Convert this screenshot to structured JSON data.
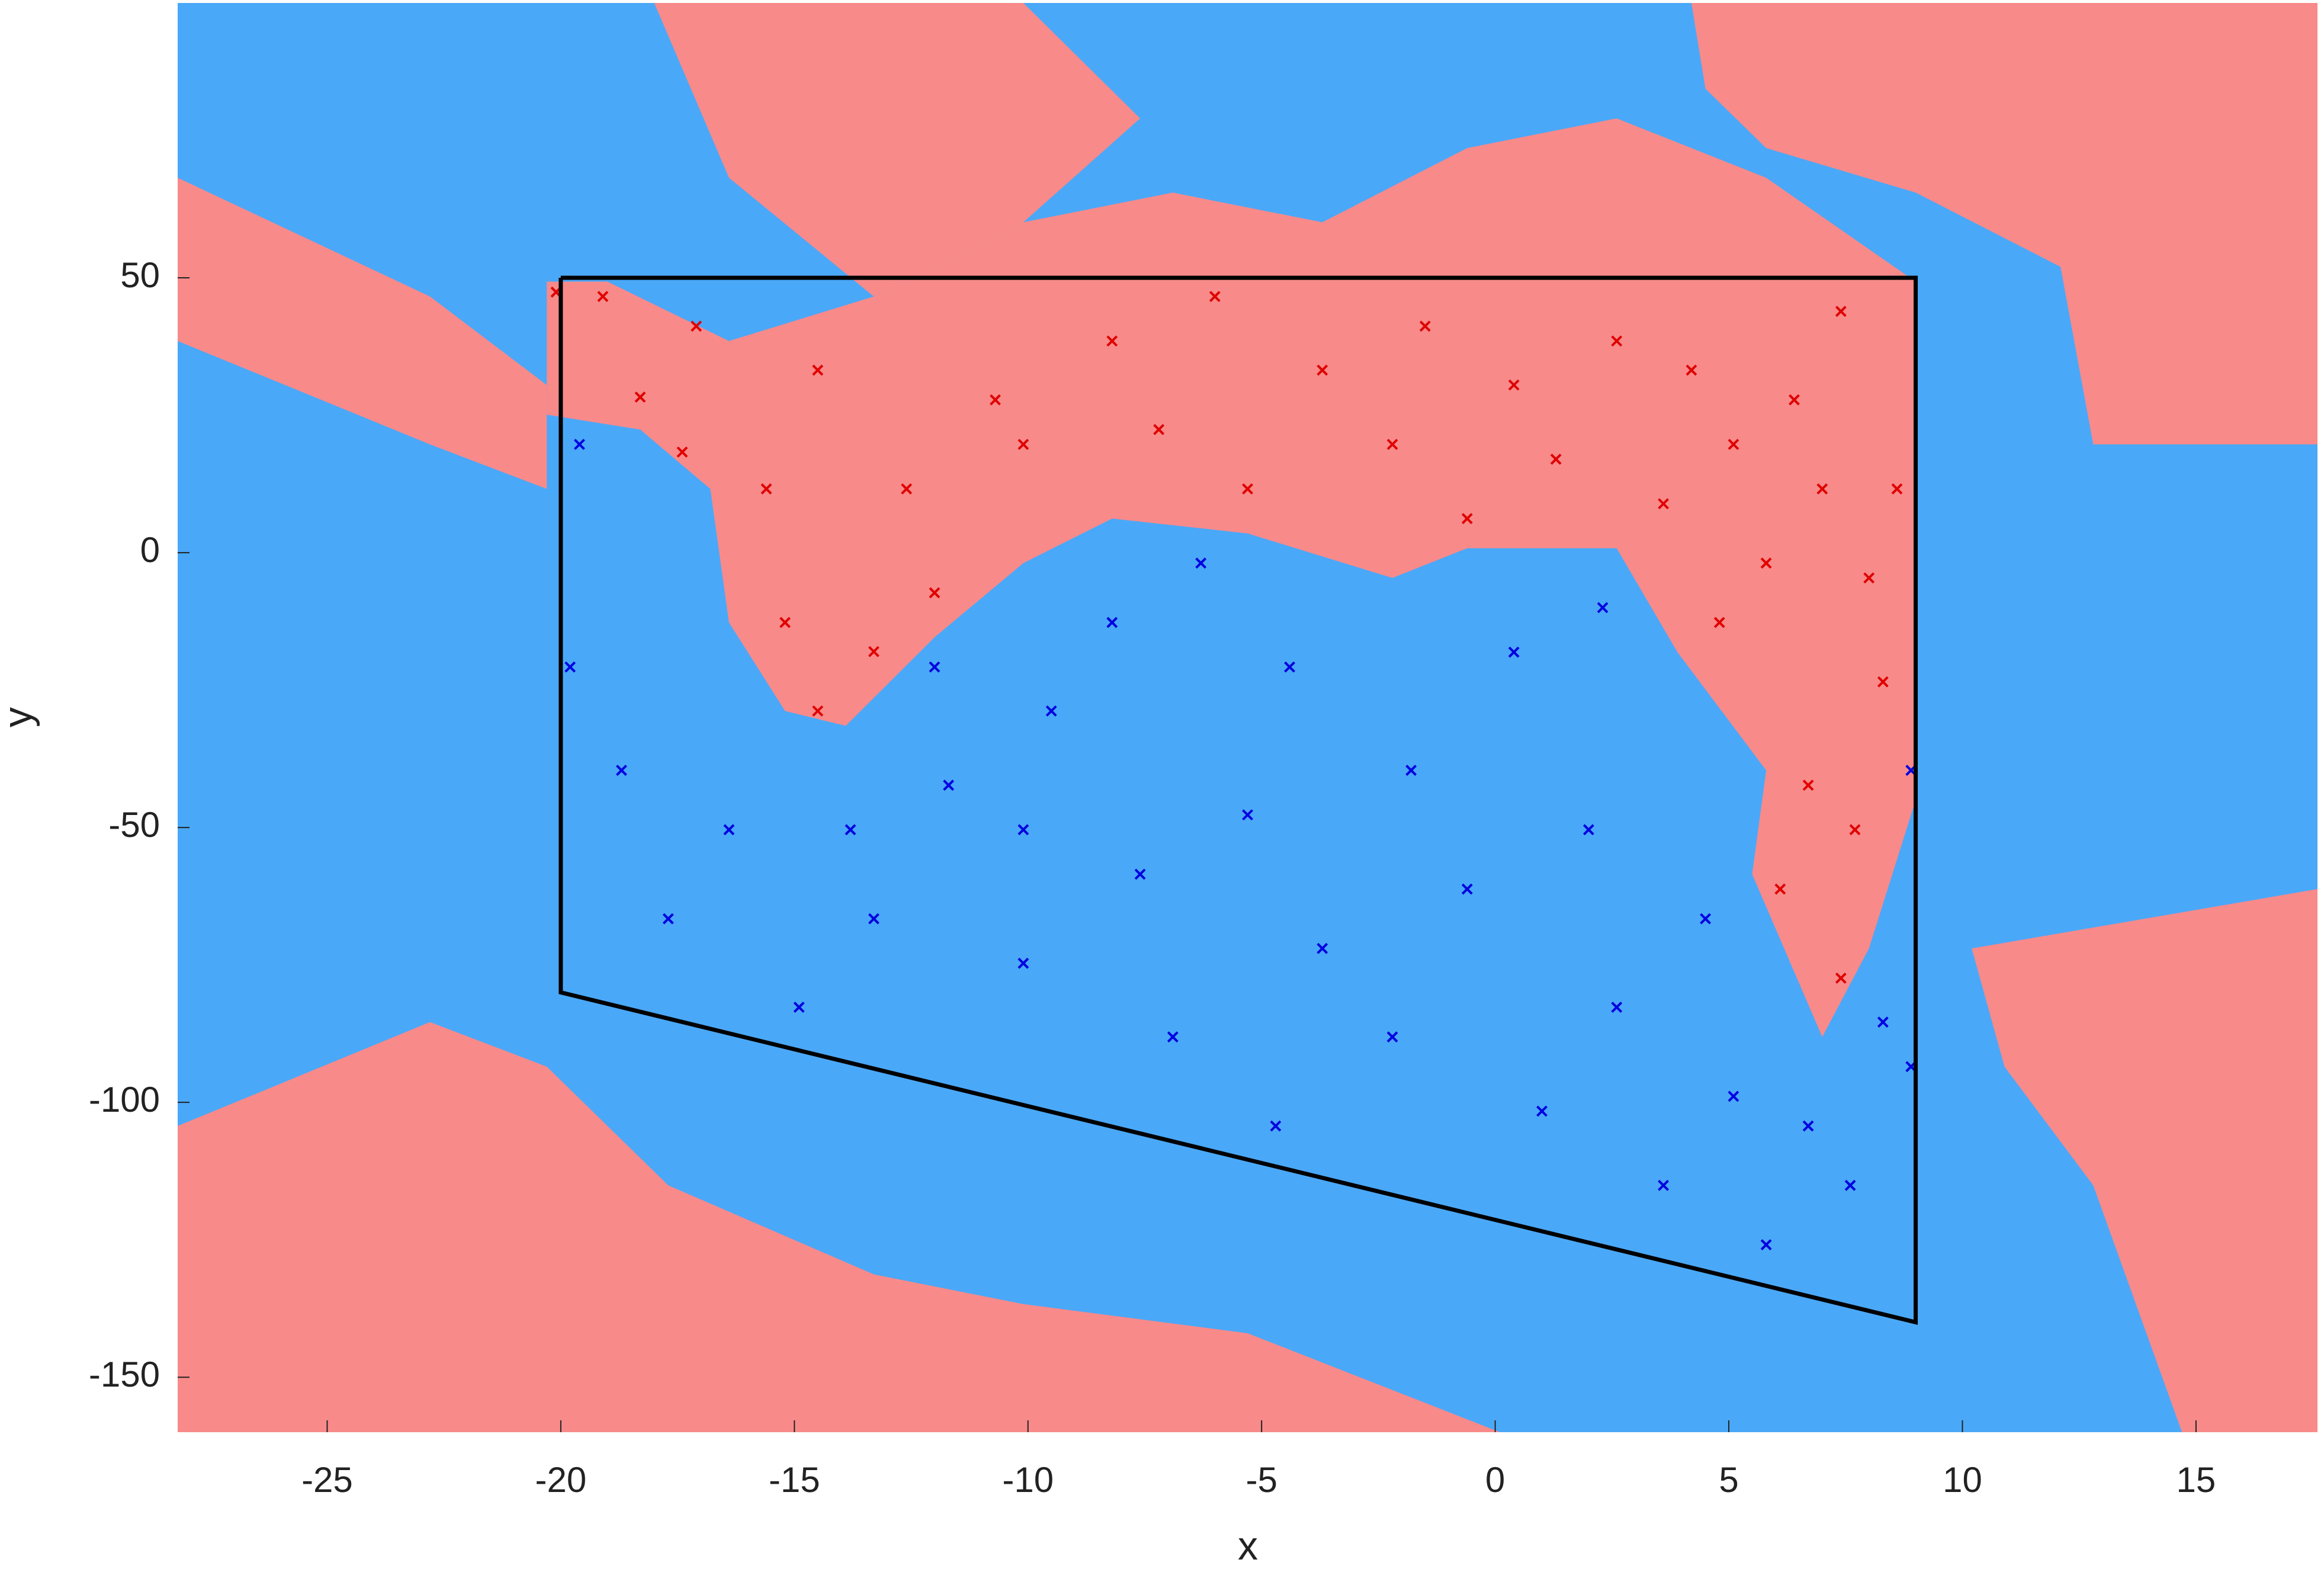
{
  "chart_data": {
    "type": "scatter",
    "x_label": "x",
    "y_label": "y",
    "xlim": [
      -28.2,
      17.6
    ],
    "ylim": [
      -160,
      100
    ],
    "xticks": [
      -25,
      -20,
      -15,
      -10,
      -5,
      0,
      5,
      10,
      15
    ],
    "yticks": [
      -150,
      -100,
      -50,
      0,
      50
    ],
    "background_color": "#4aa8f8",
    "regions": [
      {
        "color": "#f88a8a",
        "x": [
          -20.3,
          -20.3,
          -18.3,
          -16.8,
          -16.4,
          -15.2,
          -13.9,
          -12,
          -10.1,
          -8.2,
          -5.3,
          -2.2,
          -0.6,
          2.6,
          3.9,
          5.8,
          5.5,
          7,
          8,
          9,
          9,
          5.8,
          2.6,
          -0.6,
          -3.7,
          -6.9,
          -10.1,
          -13.3,
          -16.4,
          -19
        ],
        "y": [
          49.3,
          25.1,
          22.4,
          11.6,
          -12.7,
          -28.8,
          -31.5,
          -15.4,
          -1.9,
          6.2,
          3.5,
          -4.6,
          0.8,
          0.8,
          -18.1,
          -39.6,
          -58.5,
          -88.1,
          -72,
          -45,
          49.3,
          68.2,
          79,
          73.6,
          60.1,
          65.5,
          60.1,
          46.6,
          38.5,
          49.3
        ]
      },
      {
        "color": "#f88a8a",
        "x": [
          -28.2,
          -22.8,
          -20.3,
          -17.7,
          -13.3,
          -10.1,
          -5.3,
          0.1,
          -28.2
        ],
        "y": [
          -104.3,
          -85.4,
          -93.5,
          -115.1,
          -131.3,
          -136.7,
          -142,
          -160,
          -160
        ]
      },
      {
        "color": "#f88a8a",
        "x": [
          4.2,
          17.6,
          17.6,
          12.8,
          12.1,
          9,
          5.8,
          4.5
        ],
        "y": [
          100,
          100,
          19.7,
          19.7,
          52,
          65.5,
          73.6,
          84.4
        ]
      },
      {
        "color": "#f88a8a",
        "x": [
          10.2,
          17.6,
          17.6,
          14.7,
          12.8,
          10.9
        ],
        "y": [
          -72,
          -61.2,
          -160,
          -160,
          -115.1,
          -93.5
        ]
      },
      {
        "color": "#f88a8a",
        "x": [
          -28.2,
          -22.8,
          -20.3,
          -20.3,
          -22.8,
          -28.2
        ],
        "y": [
          68.2,
          46.6,
          30.5,
          11.6,
          19.7,
          38.5
        ]
      },
      {
        "color": "#f88a8a",
        "x": [
          -18,
          -10.1,
          -7.6,
          -10.1,
          -13.3,
          -16.4
        ],
        "y": [
          100,
          100,
          79,
          60.1,
          46.6,
          68.2
        ]
      }
    ],
    "boundary": {
      "color": "#000000",
      "x": [
        -20,
        9,
        9,
        -20,
        -20
      ],
      "y": [
        50,
        50,
        -140,
        -80,
        50
      ]
    },
    "series": [
      {
        "color": "#e00000",
        "x": [
          -20.1,
          -19.1,
          -18.3,
          -17.4,
          -15.6,
          -15.2,
          -14.5,
          -13.3,
          -12,
          -10.7,
          -10.1,
          -8.2,
          -7.2,
          -6,
          -5.3,
          -3.7,
          -2.2,
          -1.5,
          -0.6,
          0.4,
          1.3,
          2.6,
          3.6,
          4.2,
          5.1,
          5.8,
          6.4,
          7,
          7.4,
          8,
          8.3,
          6.7,
          6.1,
          7.4,
          7.7,
          8.6,
          4.8,
          -12.6,
          -14.5,
          -17.1
        ],
        "y": [
          47.4,
          46.6,
          28.3,
          18.3,
          11.6,
          -12.7,
          -28.8,
          -18,
          -7.3,
          27.8,
          19.7,
          38.5,
          22.4,
          46.6,
          11.6,
          33.2,
          19.7,
          41.2,
          6.2,
          30.5,
          17,
          38.5,
          8.9,
          33.2,
          19.7,
          -1.9,
          27.8,
          11.6,
          43.9,
          -4.6,
          -23.5,
          -42.3,
          -61.2,
          -77.4,
          -50.4,
          11.6,
          -12.7,
          11.6,
          33.2,
          41.2
        ]
      },
      {
        "color": "#0000e0",
        "x": [
          -19.6,
          -19.8,
          -18.7,
          -17.7,
          -16.4,
          -14.9,
          -13.3,
          -11.7,
          -10.1,
          -9.5,
          -7.6,
          -6.9,
          -5.3,
          -4.4,
          -3.7,
          -2.2,
          -1.8,
          -0.6,
          0.4,
          1,
          2,
          2.6,
          3.6,
          4.5,
          5.1,
          5.8,
          6.7,
          7.6,
          8.3,
          8.9,
          8.9,
          -12,
          -8.2,
          -6.3,
          2.3,
          -4.7,
          -13.8,
          -10.1
        ],
        "y": [
          19.7,
          -20.8,
          -39.6,
          -66.6,
          -50.4,
          -82.7,
          -66.6,
          -42.3,
          -74.7,
          -28.8,
          -58.5,
          -88.1,
          -47.7,
          -20.8,
          -72,
          -88.1,
          -39.6,
          -61.2,
          -18.1,
          -101.6,
          -50.4,
          -82.7,
          -115.1,
          -66.6,
          -98.9,
          -125.9,
          -104.3,
          -115.1,
          -85.4,
          -39.6,
          -93.5,
          -20.8,
          -12.7,
          -1.9,
          -10,
          -104.3,
          -50.4,
          -50.4
        ]
      }
    ]
  }
}
